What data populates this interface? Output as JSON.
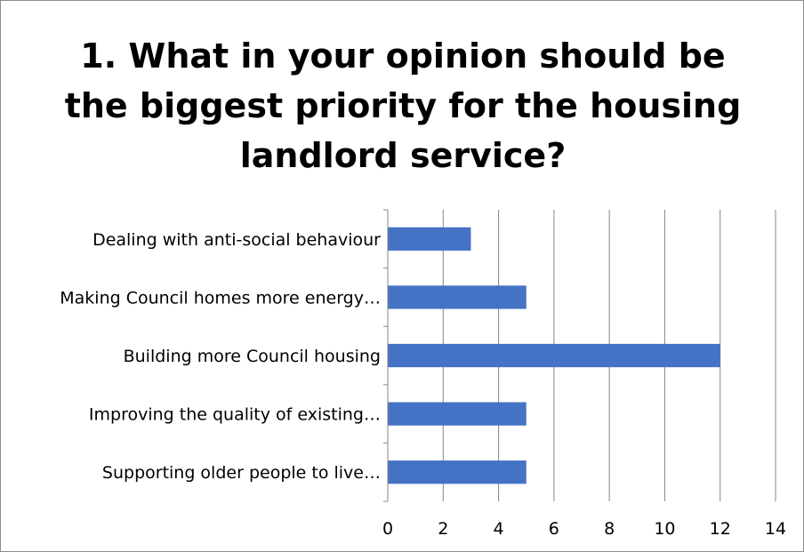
{
  "chart_data": {
    "type": "bar",
    "orientation": "horizontal",
    "title_lines": [
      "1. What in your opinion should be",
      "the biggest priority for the housing",
      "landlord service?"
    ],
    "categories": [
      "Dealing with anti-social behaviour",
      "Making Council homes more energy…",
      "Building more Council housing",
      "Improving the quality of existing…",
      "Supporting older people to live…"
    ],
    "values": [
      3,
      5,
      12,
      5,
      5
    ],
    "xlim": [
      0,
      14
    ],
    "x_ticks": [
      "0",
      "2",
      "4",
      "6",
      "8",
      "10",
      "12",
      "14"
    ],
    "grid": "vertical",
    "legend": "none",
    "bar_color": "#4472C4",
    "grid_color": "#868686"
  }
}
